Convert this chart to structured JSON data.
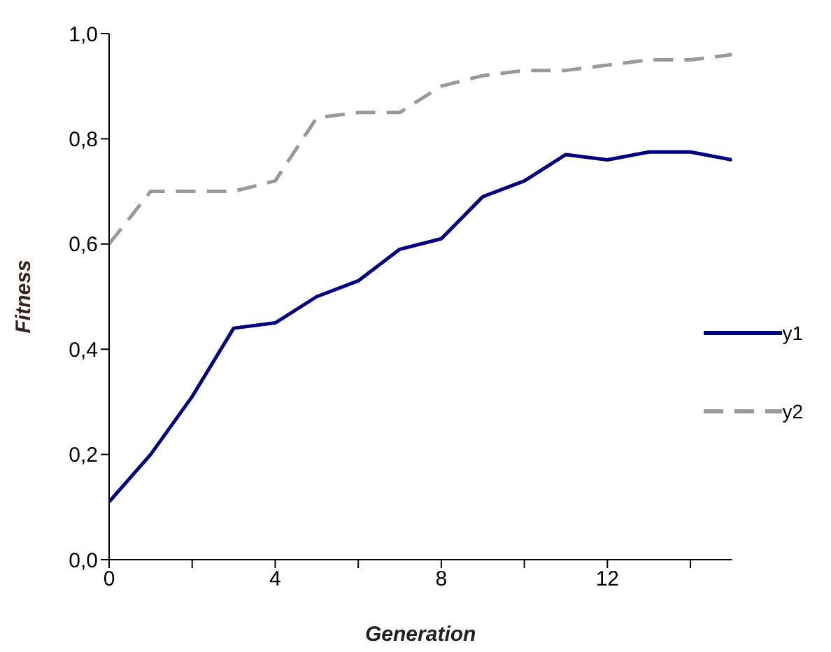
{
  "chart_data": {
    "type": "line",
    "xlabel": "Generation",
    "ylabel": "Fitness",
    "x": [
      0,
      1,
      2,
      3,
      4,
      5,
      6,
      7,
      8,
      9,
      10,
      11,
      12,
      13,
      14,
      15
    ],
    "series": [
      {
        "name": "y2",
        "color": "#999999",
        "line_style": "dashed",
        "values": [
          0.6,
          0.7,
          0.7,
          0.7,
          0.72,
          0.84,
          0.85,
          0.85,
          0.9,
          0.92,
          0.93,
          0.93,
          0.94,
          0.95,
          0.95,
          0.96
        ]
      },
      {
        "name": "y1",
        "color": "#000080",
        "line_style": "solid",
        "values": [
          0.11,
          0.2,
          0.31,
          0.44,
          0.45,
          0.5,
          0.53,
          0.59,
          0.61,
          0.69,
          0.72,
          0.77,
          0.76,
          0.775,
          0.775,
          0.76
        ]
      }
    ],
    "xlim": [
      0,
      15
    ],
    "xticks": [
      0,
      {
        "value": 2,
        "label": null
      },
      4,
      {
        "value": 6,
        "label": null
      },
      8,
      {
        "value": 10,
        "label": null
      },
      12,
      {
        "value": 14,
        "label": null
      }
    ],
    "ylim": [
      0,
      1
    ],
    "yticks": [
      {
        "value": 0,
        "label": "0,0"
      },
      {
        "value": 0.2,
        "label": "0,2"
      },
      {
        "value": 0.4,
        "label": "0,4"
      },
      {
        "value": 0.6,
        "label": "0,6"
      },
      {
        "value": 0.8,
        "label": "0,8"
      },
      {
        "value": 1,
        "label": "1,0"
      }
    ],
    "grid": false,
    "legend": "right",
    "marker": "none"
  }
}
